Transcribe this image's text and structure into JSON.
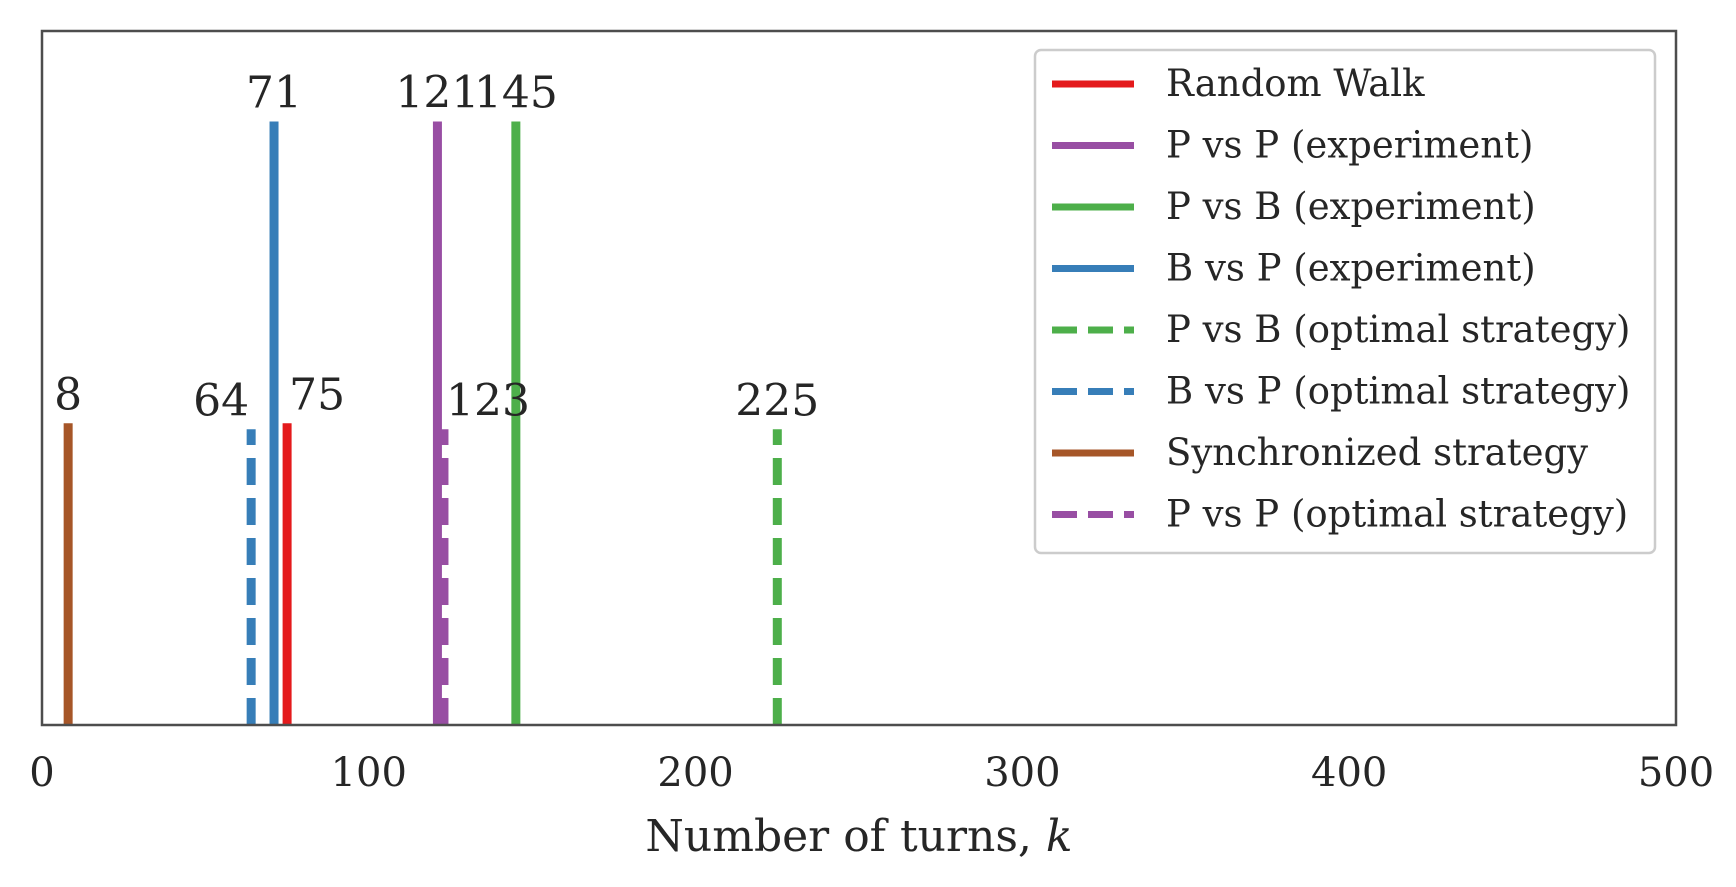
{
  "chart_data": {
    "type": "line",
    "subtype": "vertical-lines",
    "xlabel": "Number of turns, k",
    "xlim": [
      0,
      500
    ],
    "ylim": [
      0,
      1.15
    ],
    "xticks": [
      0,
      100,
      200,
      300,
      400,
      500
    ],
    "yticks_visible": false,
    "grid": false,
    "legend_position": "top-right",
    "colors": {
      "red": "#e41a1c",
      "purple": "#984ea3",
      "green": "#4daf4a",
      "blue": "#377eb8",
      "brown": "#a65628"
    },
    "series": [
      {
        "name": "Random Walk",
        "x": 75,
        "height": 0.5,
        "color": "#e41a1c",
        "style": "solid",
        "label": "75",
        "label_align": "start"
      },
      {
        "name": "P vs P (experiment)",
        "x": 121,
        "height": 1.0,
        "color": "#984ea3",
        "style": "solid",
        "label": "121",
        "label_align": "middle"
      },
      {
        "name": "P vs B (experiment)",
        "x": 145,
        "height": 1.0,
        "color": "#4daf4a",
        "style": "solid",
        "label": "145",
        "label_align": "middle"
      },
      {
        "name": "B vs P (experiment)",
        "x": 71,
        "height": 1.0,
        "color": "#377eb8",
        "style": "solid",
        "label": "71",
        "label_align": "middle"
      },
      {
        "name": "P vs B (optimal strategy)",
        "x": 225,
        "height": 0.49,
        "color": "#4daf4a",
        "style": "dashed",
        "label": "225",
        "label_align": "middle"
      },
      {
        "name": "B vs P (optimal strategy)",
        "x": 64,
        "height": 0.49,
        "color": "#377eb8",
        "style": "dashed",
        "label": "64",
        "label_align": "end"
      },
      {
        "name": "Synchronized strategy",
        "x": 8,
        "height": 0.5,
        "color": "#a65628",
        "style": "solid",
        "label": "8",
        "label_align": "middle"
      },
      {
        "name": "P vs P (optimal strategy)",
        "x": 123,
        "height": 0.49,
        "color": "#984ea3",
        "style": "dashed",
        "label": "123",
        "label_align": "start"
      }
    ]
  }
}
